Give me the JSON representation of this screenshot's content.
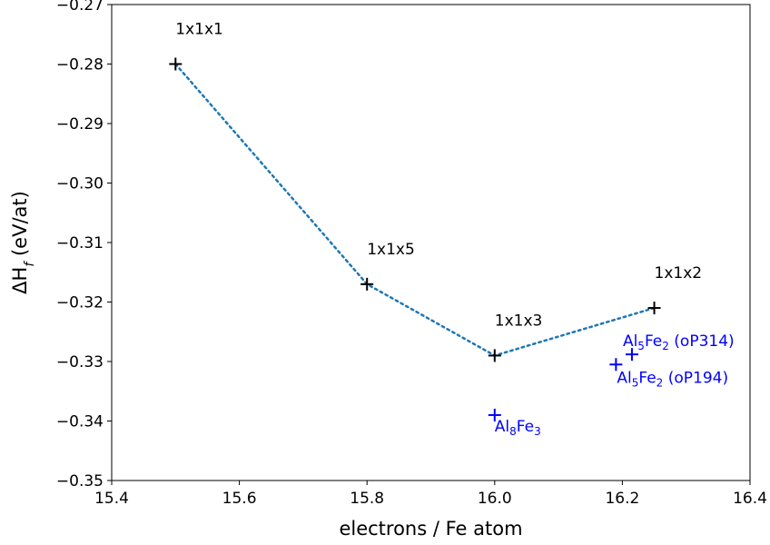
{
  "chart_data": {
    "type": "scatter",
    "xlabel": "electrons / Fe atom",
    "ylabel_parts": [
      "ΔH",
      "f",
      " (eV/at)"
    ],
    "xlim": [
      15.4,
      16.4
    ],
    "ylim": [
      -0.35,
      -0.27
    ],
    "xticks": [
      "15.4",
      "15.6",
      "15.8",
      "16.0",
      "16.2",
      "16.4"
    ],
    "yticks": [
      "−0.35",
      "−0.34",
      "−0.33",
      "−0.32",
      "−0.31",
      "−0.30",
      "−0.29",
      "−0.28",
      "−0.27"
    ],
    "grid": false,
    "series": [
      {
        "marker": "+",
        "color": "#000000",
        "line": {
          "style": "dotted",
          "color": "#1f77b4"
        },
        "points": [
          {
            "x": 15.5,
            "y": -0.28,
            "label": "1x1x1"
          },
          {
            "x": 15.8,
            "y": -0.317,
            "label": "1x1x5"
          },
          {
            "x": 16.0,
            "y": -0.329,
            "label": "1x1x3"
          },
          {
            "x": 16.25,
            "y": -0.321,
            "label": "1x1x2"
          }
        ]
      },
      {
        "marker": "+",
        "color": "#0000ff",
        "line": null,
        "points": [
          {
            "x": 16.0,
            "y": -0.339,
            "label_parts": [
              "Al",
              "8",
              "Fe",
              "3",
              ""
            ]
          },
          {
            "x": 16.215,
            "y": -0.3288,
            "label_parts": [
              "Al",
              "5",
              "Fe",
              "2",
              " (oP314)"
            ]
          },
          {
            "x": 16.19,
            "y": -0.3305,
            "label_parts": [
              "Al",
              "5",
              "Fe",
              "2",
              " (oP194)"
            ]
          }
        ]
      }
    ]
  }
}
